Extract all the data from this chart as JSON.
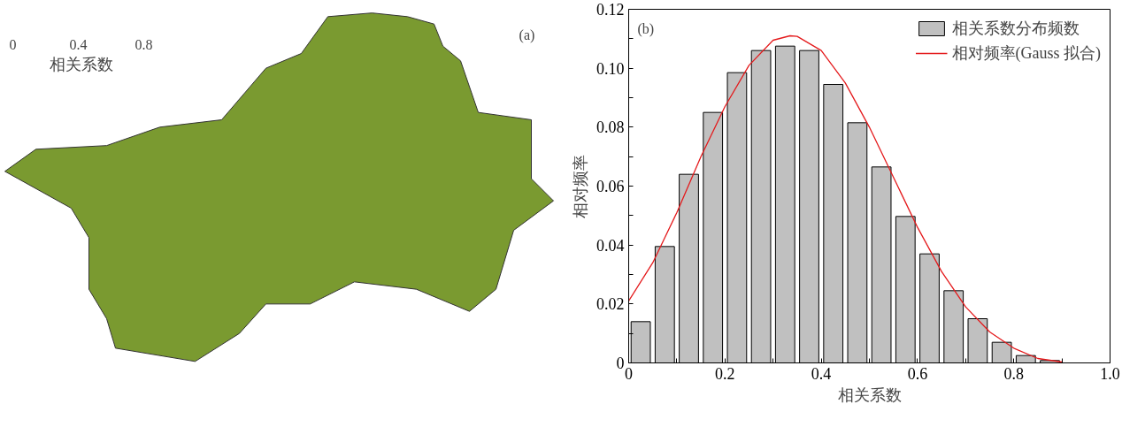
{
  "chart_data": [
    {
      "type": "other",
      "title": "(a)",
      "clabel": "相关系数",
      "annotations": [
        "0",
        "0.4",
        "0.8"
      ]
    },
    {
      "type": "histogram",
      "title": "(b)",
      "xlabel": "相关系数",
      "ylabel": "相对频率",
      "bins": [
        0,
        0.05,
        0.1,
        0.15,
        0.2,
        0.25,
        0.3,
        0.35,
        0.4,
        0.45,
        0.5,
        0.55,
        0.6,
        0.65,
        0.7,
        0.75,
        0.8,
        0.85,
        0.9
      ],
      "series": [
        {
          "name": "相关系数分布频数",
          "type": "histogram",
          "color": "#c0c0c0",
          "values": [
            0.014,
            0.0395,
            0.064,
            0.085,
            0.0985,
            0.106,
            0.1075,
            0.106,
            0.0945,
            0.0815,
            0.0665,
            0.0497,
            0.037,
            0.0245,
            0.015,
            0.007,
            0.0025,
            0.0008
          ]
        },
        {
          "name": "相对频率(Gauss 拟合)",
          "type": "line",
          "color": "#e41a1c",
          "x": [
            0,
            0.05,
            0.1,
            0.15,
            0.2,
            0.25,
            0.3,
            0.335,
            0.35,
            0.4,
            0.45,
            0.5,
            0.55,
            0.6,
            0.65,
            0.7,
            0.75,
            0.8,
            0.85,
            0.9
          ],
          "values": [
            0.021,
            0.034,
            0.051,
            0.07,
            0.087,
            0.101,
            0.1095,
            0.111,
            0.1108,
            0.106,
            0.095,
            0.08,
            0.063,
            0.046,
            0.031,
            0.019,
            0.0105,
            0.005,
            0.0015,
            0.0003
          ]
        }
      ],
      "xlim": [
        0,
        1.0
      ],
      "ylim": [
        0,
        0.12
      ],
      "xticks": [
        0,
        {
          "value": 0.1,
          "label": null
        },
        0.2,
        {
          "value": 0.3,
          "label": null
        },
        0.4,
        {
          "value": 0.5,
          "label": null
        },
        0.6,
        {
          "value": 0.7,
          "label": null
        },
        0.8,
        {
          "value": 0.9,
          "label": null
        },
        {
          "value": 1.0,
          "label": "1.0"
        }
      ],
      "yticks": [
        0,
        {
          "value": 0.01,
          "label": null
        },
        0.02,
        {
          "value": 0.03,
          "label": null
        },
        0.04,
        {
          "value": 0.05,
          "label": null
        },
        0.06,
        {
          "value": 0.07,
          "label": null
        },
        0.08,
        {
          "value": 0.09,
          "label": null
        },
        {
          "value": 0.1,
          "label": "0.10"
        },
        {
          "value": 0.11,
          "label": null
        },
        {
          "value": 0.12,
          "label": "0.12"
        }
      ],
      "grid": false,
      "legend": "top right",
      "line_style": "solid",
      "marker": "none"
    }
  ]
}
